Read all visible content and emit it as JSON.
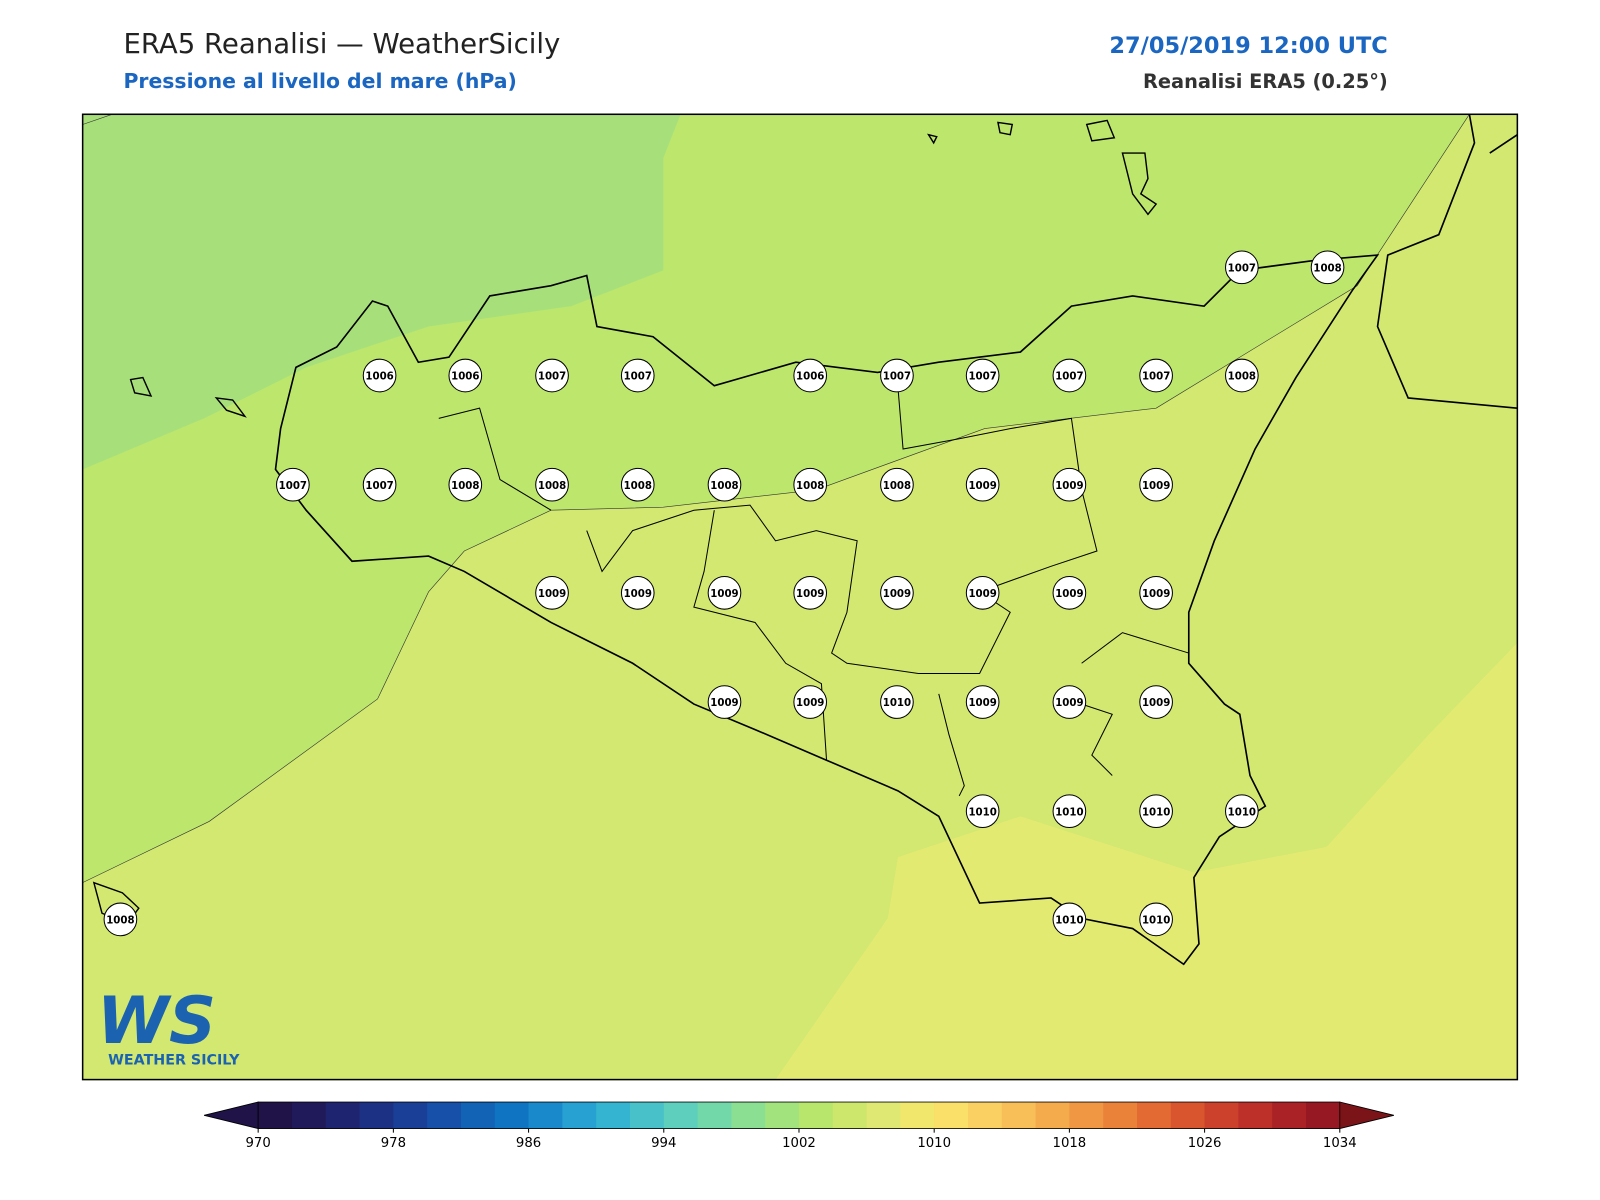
{
  "header": {
    "title": "ERA5 Reanalisi — WeatherSicily",
    "subtitle": "Pressione al livello del mare (hPa)",
    "date": "27/05/2019 12:00 UTC",
    "source": "Reanalisi ERA5 (0.25°)"
  },
  "stations": [
    1007,
    1008,
    1006,
    1006,
    1007,
    1007,
    1006,
    1007,
    1007,
    1007,
    1007,
    1008,
    1007,
    1007,
    1008,
    1008,
    1008,
    1008,
    1008,
    1008,
    1009,
    1009,
    1009,
    1009,
    1009,
    1009,
    1009,
    1009,
    1009,
    1009,
    1009,
    1009,
    1009,
    1010,
    1009,
    1009,
    1009,
    1010,
    1010,
    1010,
    1010,
    1008,
    1010,
    1010
  ],
  "colorbar": {
    "lim": [
      970,
      1034
    ],
    "ticks": [
      970,
      978,
      986,
      994,
      1002,
      1010,
      1018,
      1026,
      1034
    ]
  },
  "logo": {
    "mark": "WS",
    "text": "WEATHER SICILY"
  }
}
